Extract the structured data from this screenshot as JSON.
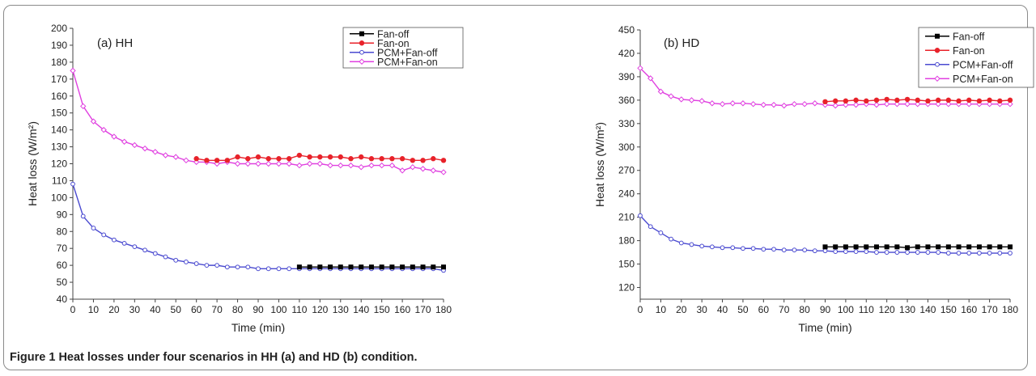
{
  "caption": {
    "label": "Figure 1",
    "text": "Heat losses under four scenarios in HH (a) and HD (b) condition."
  },
  "chart_data": [
    {
      "type": "line",
      "title": "(a) HH",
      "xlabel": "Time (min)",
      "ylabel": "Heat loss (W/m²)",
      "xlim": [
        0,
        180
      ],
      "ylim": [
        40,
        200
      ],
      "xticks": [
        0,
        10,
        20,
        30,
        40,
        50,
        60,
        70,
        80,
        90,
        100,
        110,
        120,
        130,
        140,
        150,
        160,
        170,
        180
      ],
      "yticks": [
        40,
        50,
        60,
        70,
        80,
        90,
        100,
        110,
        120,
        130,
        140,
        150,
        160,
        170,
        180,
        190,
        200
      ],
      "grid": false,
      "legend_position": "top-right",
      "series": [
        {
          "name": "Fan-off",
          "color": "#000000",
          "marker": "square",
          "x": [
            110,
            115,
            120,
            125,
            130,
            135,
            140,
            145,
            150,
            155,
            160,
            165,
            170,
            175,
            180
          ],
          "y": [
            59,
            59,
            59,
            59,
            59,
            59,
            59,
            59,
            59,
            59,
            59,
            59,
            59,
            59,
            59
          ]
        },
        {
          "name": "Fan-on",
          "color": "#e8222a",
          "marker": "circle",
          "x": [
            60,
            65,
            70,
            75,
            80,
            85,
            90,
            95,
            100,
            105,
            110,
            115,
            120,
            125,
            130,
            135,
            140,
            145,
            150,
            155,
            160,
            165,
            170,
            175,
            180
          ],
          "y": [
            123,
            122,
            122,
            122,
            124,
            123,
            124,
            123,
            123,
            123,
            125,
            124,
            124,
            124,
            124,
            123,
            124,
            123,
            123,
            123,
            123,
            122,
            122,
            123,
            122
          ]
        },
        {
          "name": "PCM+Fan-off",
          "color": "#4a4ad0",
          "marker": "open-circle",
          "x": [
            0,
            5,
            10,
            15,
            20,
            25,
            30,
            35,
            40,
            45,
            50,
            55,
            60,
            65,
            70,
            75,
            80,
            85,
            90,
            95,
            100,
            105,
            110,
            115,
            120,
            125,
            130,
            135,
            140,
            145,
            150,
            155,
            160,
            165,
            170,
            175,
            180
          ],
          "y": [
            108,
            89,
            82,
            78,
            75,
            73,
            71,
            69,
            67,
            65,
            63,
            62,
            61,
            60,
            60,
            59,
            59,
            59,
            58,
            58,
            58,
            58,
            58,
            58,
            58,
            58,
            58,
            58,
            58,
            58,
            58,
            58,
            58,
            58,
            58,
            58,
            57
          ]
        },
        {
          "name": "PCM+Fan-on",
          "color": "#e040e0",
          "marker": "open-diamond",
          "x": [
            0,
            5,
            10,
            15,
            20,
            25,
            30,
            35,
            40,
            45,
            50,
            55,
            60,
            65,
            70,
            75,
            80,
            85,
            90,
            95,
            100,
            105,
            110,
            115,
            120,
            125,
            130,
            135,
            140,
            145,
            150,
            155,
            160,
            165,
            170,
            175,
            180
          ],
          "y": [
            175,
            154,
            145,
            140,
            136,
            133,
            131,
            129,
            127,
            125,
            124,
            122,
            121,
            121,
            120,
            121,
            120,
            120,
            120,
            120,
            120,
            120,
            119,
            120,
            120,
            119,
            119,
            119,
            118,
            119,
            119,
            119,
            116,
            118,
            117,
            116,
            115
          ]
        }
      ]
    },
    {
      "type": "line",
      "title": "(b) HD",
      "xlabel": "Time (min)",
      "ylabel": "Heat loss (W/m²)",
      "xlim": [
        0,
        180
      ],
      "ylim": [
        105,
        450
      ],
      "xticks": [
        0,
        10,
        20,
        30,
        40,
        50,
        60,
        70,
        80,
        90,
        100,
        110,
        120,
        130,
        140,
        150,
        160,
        170,
        180
      ],
      "yticks": [
        120,
        150,
        180,
        210,
        240,
        270,
        300,
        330,
        360,
        390,
        420,
        450
      ],
      "grid": false,
      "legend_position": "top-right",
      "series": [
        {
          "name": "Fan-off",
          "color": "#000000",
          "marker": "square",
          "x": [
            90,
            95,
            100,
            105,
            110,
            115,
            120,
            125,
            130,
            135,
            140,
            145,
            150,
            155,
            160,
            165,
            170,
            175,
            180
          ],
          "y": [
            172,
            172,
            172,
            172,
            172,
            172,
            172,
            172,
            171,
            172,
            172,
            172,
            172,
            172,
            172,
            172,
            172,
            172,
            172
          ]
        },
        {
          "name": "Fan-on",
          "color": "#e8222a",
          "marker": "circle",
          "x": [
            90,
            95,
            100,
            105,
            110,
            115,
            120,
            125,
            130,
            135,
            140,
            145,
            150,
            155,
            160,
            165,
            170,
            175,
            180
          ],
          "y": [
            358,
            359,
            359,
            360,
            359,
            360,
            361,
            360,
            361,
            360,
            359,
            360,
            360,
            359,
            360,
            359,
            360,
            359,
            360
          ]
        },
        {
          "name": "PCM+Fan-off",
          "color": "#4a4ad0",
          "marker": "open-circle",
          "x": [
            0,
            5,
            10,
            15,
            20,
            25,
            30,
            35,
            40,
            45,
            50,
            55,
            60,
            65,
            70,
            75,
            80,
            85,
            90,
            95,
            100,
            105,
            110,
            115,
            120,
            125,
            130,
            135,
            140,
            145,
            150,
            155,
            160,
            165,
            170,
            175,
            180
          ],
          "y": [
            212,
            198,
            190,
            182,
            177,
            175,
            173,
            172,
            171,
            171,
            170,
            170,
            169,
            169,
            168,
            168,
            168,
            167,
            167,
            166,
            166,
            166,
            166,
            165,
            165,
            165,
            165,
            165,
            165,
            165,
            164,
            164,
            164,
            164,
            164,
            164,
            164
          ]
        },
        {
          "name": "PCM+Fan-on",
          "color": "#e040e0",
          "marker": "open-diamond",
          "x": [
            0,
            5,
            10,
            15,
            20,
            25,
            30,
            35,
            40,
            45,
            50,
            55,
            60,
            65,
            70,
            75,
            80,
            85,
            90,
            95,
            100,
            105,
            110,
            115,
            120,
            125,
            130,
            135,
            140,
            145,
            150,
            155,
            160,
            165,
            170,
            175,
            180
          ],
          "y": [
            401,
            388,
            371,
            365,
            361,
            360,
            359,
            356,
            355,
            356,
            356,
            355,
            354,
            354,
            353,
            355,
            355,
            356,
            354,
            353,
            354,
            354,
            355,
            354,
            355,
            355,
            355,
            355,
            355,
            355,
            355,
            355,
            355,
            355,
            355,
            355,
            355
          ]
        }
      ]
    }
  ]
}
